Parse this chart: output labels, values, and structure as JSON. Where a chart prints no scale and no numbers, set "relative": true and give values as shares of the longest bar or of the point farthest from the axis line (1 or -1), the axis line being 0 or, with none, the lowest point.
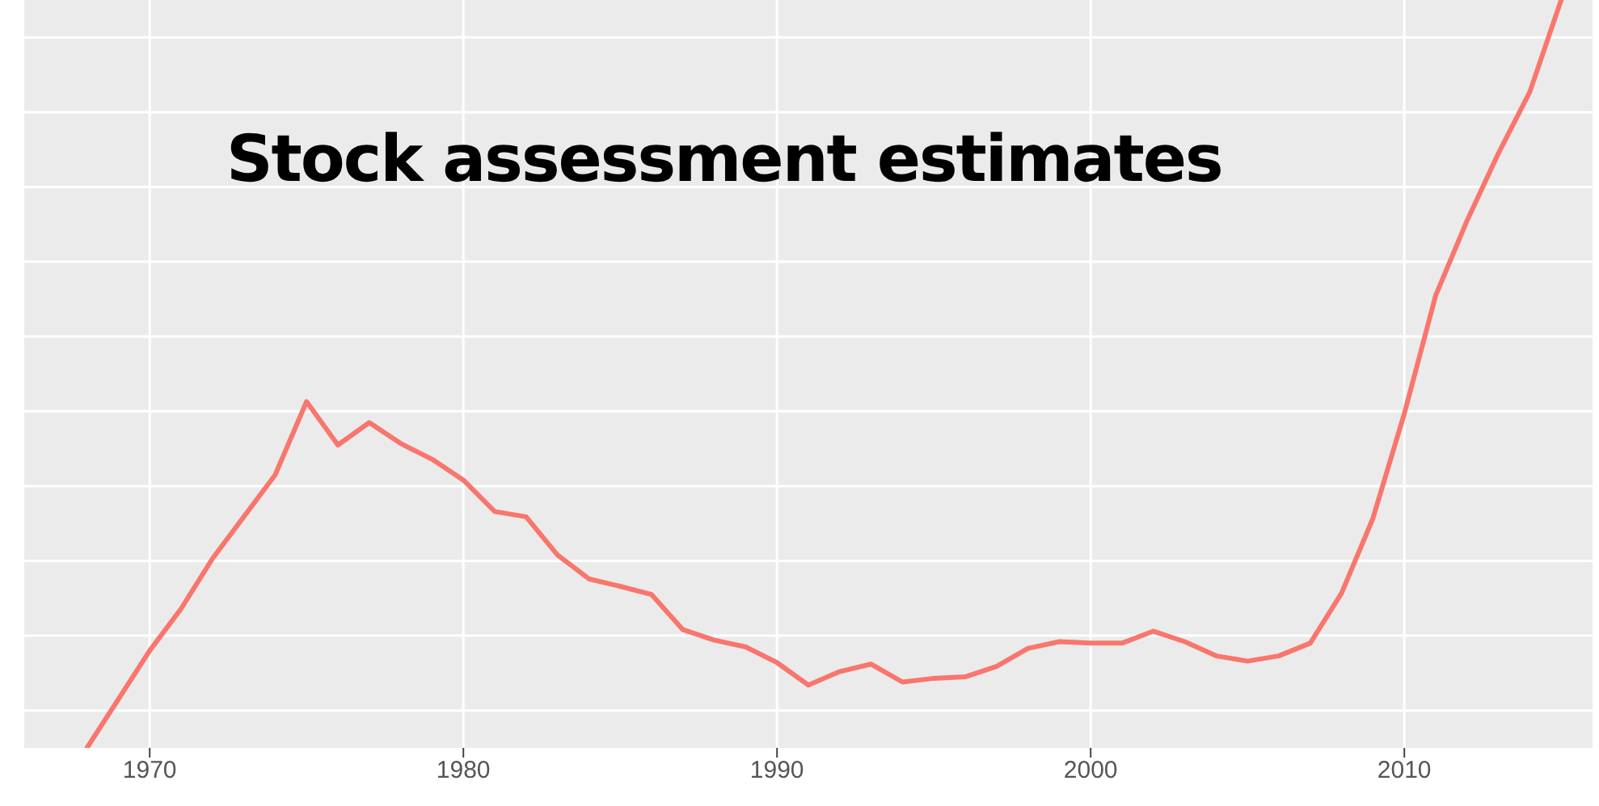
{
  "chart_data": {
    "type": "line",
    "title": "Stock assessment estimates",
    "relative": true,
    "x": [
      1968,
      1969,
      1970,
      1971,
      1972,
      1973,
      1974,
      1975,
      1976,
      1977,
      1978,
      1979,
      1980,
      1981,
      1982,
      1983,
      1984,
      1985,
      1986,
      1987,
      1988,
      1989,
      1990,
      1991,
      1992,
      1993,
      1994,
      1995,
      1996,
      1997,
      1998,
      1999,
      2000,
      2001,
      2002,
      2003,
      2004,
      2005,
      2006,
      2007,
      2008,
      2009,
      2010,
      2011,
      2012,
      2013,
      2014,
      2015
    ],
    "series": [
      {
        "color": "#f8766d",
        "values": [
          0,
          0.065,
          0.13,
          0.186,
          0.253,
          0.309,
          0.365,
          0.463,
          0.405,
          0.435,
          0.407,
          0.386,
          0.358,
          0.316,
          0.309,
          0.258,
          0.226,
          0.216,
          0.205,
          0.158,
          0.144,
          0.135,
          0.114,
          0.084,
          0.102,
          0.112,
          0.088,
          0.093,
          0.095,
          0.109,
          0.133,
          0.142,
          0.14,
          0.14,
          0.156,
          0.142,
          0.123,
          0.116,
          0.123,
          0.14,
          0.207,
          0.307,
          0.447,
          0.605,
          0.705,
          0.795,
          0.877,
          1
        ]
      }
    ],
    "xlim": [
      1966,
      2016
    ],
    "xticks": [
      1970,
      1980,
      1990,
      2000,
      2010
    ],
    "grid": true,
    "marker": "none",
    "line_style": "solid"
  }
}
